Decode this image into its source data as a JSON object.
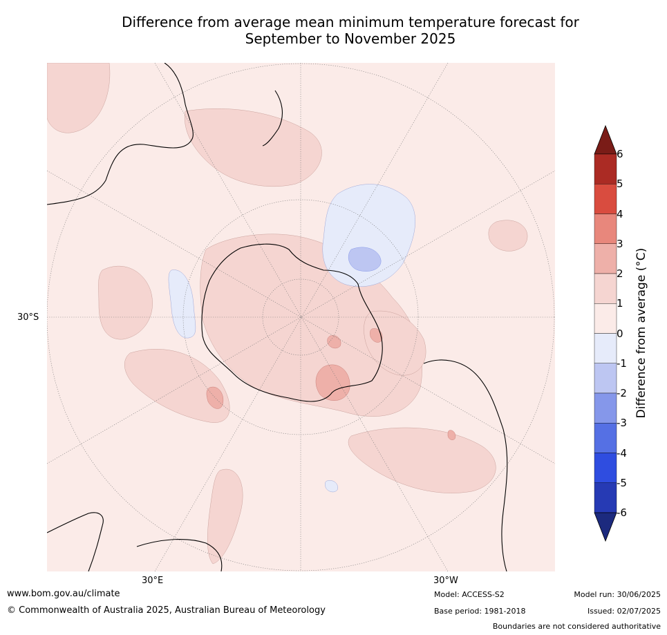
{
  "title_line1": "Difference from average mean minimum temperature forecast for",
  "title_line2": "September to November 2025",
  "map": {
    "projection": "south-polar-stereographic",
    "lat_label": "30°S",
    "lon_labels": [
      "30°E",
      "30°W"
    ],
    "background_color": "#fbebe8"
  },
  "colorbar": {
    "label": "Difference from average (°C)",
    "ticks": [
      "6",
      "5",
      "4",
      "3",
      "2",
      "1",
      "0",
      "-1",
      "-2",
      "-3",
      "-4",
      "-5",
      "-6"
    ],
    "colors": [
      "#7a1c17",
      "#ab2b24",
      "#d94c3f",
      "#e8877c",
      "#eeb0a9",
      "#f5d5d1",
      "#fbebe8",
      "#e6ebfa",
      "#bdc6f2",
      "#8597ea",
      "#5570e4",
      "#2f4de0",
      "#263ab4",
      "#1c2a7e"
    ]
  },
  "footer": {
    "url": "www.bom.gov.au/climate",
    "copyright": "© Commonwealth of Australia 2025, Australian Bureau of Meteorology",
    "model": "Model: ACCESS-S2",
    "base_period": "Base period: 1981-2018",
    "model_run": "Model run: 30/06/2025",
    "issued": "Issued: 02/07/2025",
    "disclaimer": "Boundaries are not considered authoritative"
  }
}
